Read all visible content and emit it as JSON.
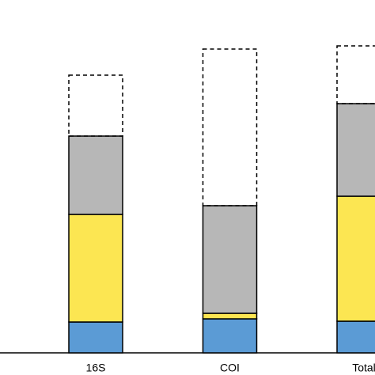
{
  "chart_data": {
    "type": "stacked-bar",
    "categories": [
      "16S",
      "COI",
      "Total"
    ],
    "series": [
      {
        "color": "#5b9bd5",
        "values": [
          39,
          43,
          40
        ]
      },
      {
        "color": "#fce652",
        "values": [
          136,
          7,
          158
        ]
      },
      {
        "color": "#b7b7b7",
        "values": [
          99,
          136,
          117
        ]
      },
      {
        "color": "none",
        "dashed": true,
        "values": [
          77,
          198,
          73
        ]
      }
    ]
  }
}
